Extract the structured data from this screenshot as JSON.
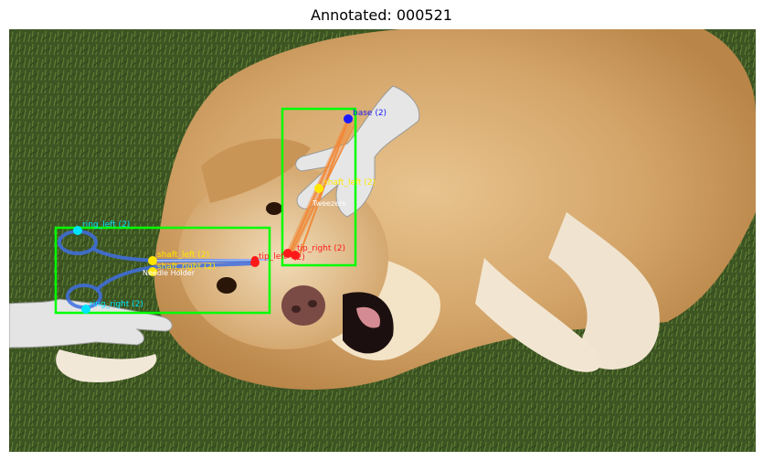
{
  "title": "Annotated: 000521",
  "colors": {
    "box": "#00ff00",
    "grass": "#3f5a24",
    "fur": "#d8ae78",
    "tool_needle_holder": "#3f6fe0",
    "tool_tweezers": "#f08a3a",
    "kp_ring": "#00e5ff",
    "kp_shaft": "#ffe600",
    "kp_tip": "#ff1a1a",
    "kp_base": "#1a1aff"
  },
  "tools": [
    {
      "label": "Needle Holder",
      "keypoints": {
        "ring_left": "ring_left (2)",
        "ring_right": "ring_right (2)",
        "shaft_left": "shaft_left (2)",
        "shaft_right": "shaft_right (2)",
        "tip_left": "tip_left"
      }
    },
    {
      "label": "Tweezers",
      "keypoints": {
        "base": "base (2)",
        "shaft_left": "shaft_left (2)",
        "tip_right": "tip_right (2)",
        "tip_left": "(2)"
      }
    }
  ]
}
